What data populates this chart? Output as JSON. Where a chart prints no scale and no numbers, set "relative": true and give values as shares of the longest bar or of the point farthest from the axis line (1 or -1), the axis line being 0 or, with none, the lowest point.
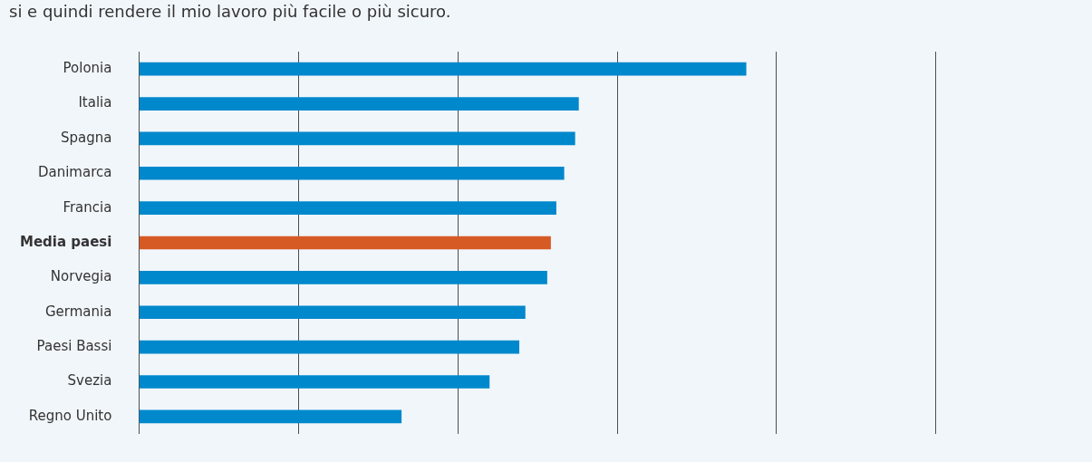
{
  "chart_data": {
    "type": "bar",
    "orientation": "horizontal",
    "relative": true,
    "grid": "x",
    "title": "si e quindi rendere il mio lavoro più facile o più sicuro.",
    "categories": [
      "Polonia",
      "Italia",
      "Spagna",
      "Danimarca",
      "Francia",
      "Media paesi",
      "Norvegia",
      "Germania",
      "Paesi Bassi",
      "Svezia",
      "Regno Unito"
    ],
    "values": [
      1,
      0.724,
      0.718,
      0.7,
      0.687,
      0.678,
      0.672,
      0.636,
      0.626,
      0.577,
      0.432
    ],
    "colors": [
      "#0088cc",
      "#0088cc",
      "#0088cc",
      "#0088cc",
      "#0088cc",
      "#d65a24",
      "#0088cc",
      "#0088cc",
      "#0088cc",
      "#0088cc",
      "#0088cc"
    ]
  }
}
